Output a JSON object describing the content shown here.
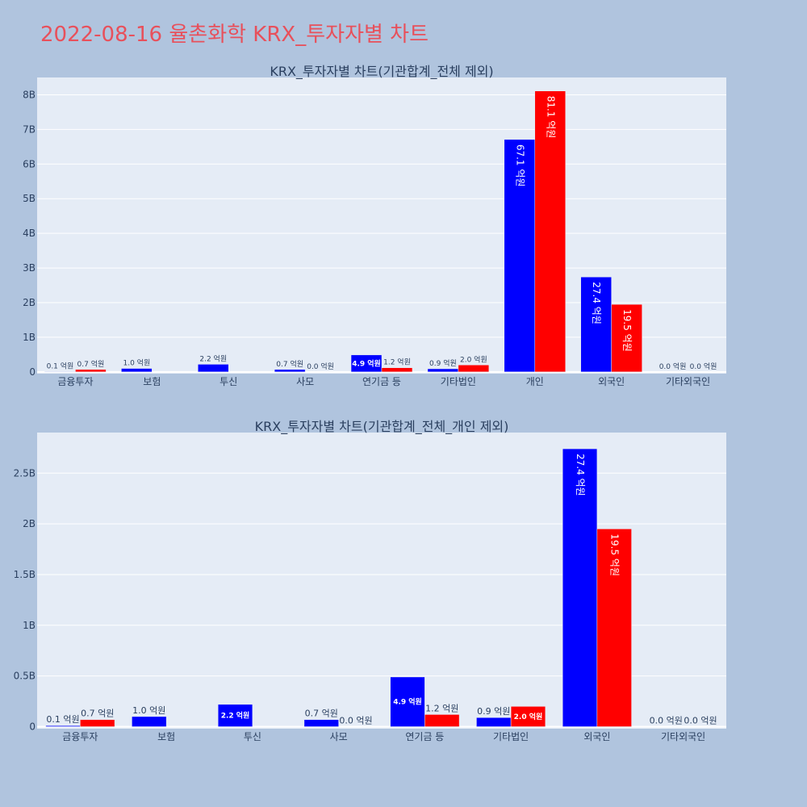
{
  "page": {
    "title": "2022-08-16 율촌화학 KRX_투자자별 차트"
  },
  "colors": {
    "buy": "#0000ff",
    "sell": "#ff0000",
    "plot_bg": "#e5ecf6",
    "page_bg": "#b0c4de",
    "title": "#e8505b"
  },
  "chart_data": [
    {
      "type": "bar",
      "title": "KRX_투자자별 차트(기관합계_전체 제외)",
      "categories": [
        "금융투자",
        "보험",
        "투신",
        "사모",
        "연기금 등",
        "기타법인",
        "개인",
        "외국인",
        "기타외국인"
      ],
      "series": [
        {
          "color": "blue",
          "values": [
            0.01,
            0.1,
            0.22,
            0.07,
            0.49,
            0.09,
            6.71,
            2.74,
            0.0
          ],
          "labels": [
            "0.1 억원",
            "1.0 억원",
            "2.2 억원",
            "0.7 억원",
            "4.9 억원",
            "0.9 억원",
            "67.1 억원",
            "27.4 억원",
            "0.0 억원"
          ]
        },
        {
          "color": "red",
          "values": [
            0.07,
            0.0,
            0.0,
            0.0,
            0.12,
            0.2,
            8.11,
            1.95,
            0.0
          ],
          "labels": [
            "0.7 억원",
            "",
            "",
            "0.0 억원",
            "1.2 억원",
            "2.0 억원",
            "81.1 억원",
            "19.5 억원",
            "0.0 억원"
          ]
        }
      ],
      "yticks": [
        "0",
        "1B",
        "2B",
        "3B",
        "4B",
        "5B",
        "6B",
        "7B",
        "8B"
      ],
      "ytick_values": [
        0,
        1,
        2,
        3,
        4,
        5,
        6,
        7,
        8
      ],
      "ylim": [
        -0.05,
        8.5
      ],
      "y_unit": "B (billion KRW)",
      "grid": true
    },
    {
      "type": "bar",
      "title": "KRX_투자자별 차트(기관합계_전체_개인 제외)",
      "categories": [
        "금융투자",
        "보험",
        "투신",
        "사모",
        "연기금 등",
        "기타법인",
        "외국인",
        "기타외국인"
      ],
      "series": [
        {
          "color": "blue",
          "values": [
            0.01,
            0.1,
            0.22,
            0.07,
            0.49,
            0.09,
            2.74,
            0.0
          ],
          "labels": [
            "0.1 억원",
            "1.0 억원",
            "2.2 억원",
            "0.7 억원",
            "4.9 억원",
            "0.9 억원",
            "27.4 억원",
            "0.0 억원"
          ]
        },
        {
          "color": "red",
          "values": [
            0.07,
            0.0,
            0.0,
            0.0,
            0.12,
            0.2,
            1.95,
            0.0
          ],
          "labels": [
            "0.7 억원",
            "",
            "",
            "0.0 억원",
            "1.2 억원",
            "2.0 억원",
            "19.5 억원",
            "0.0 억원"
          ]
        }
      ],
      "yticks": [
        "0",
        "0.5B",
        "1B",
        "1.5B",
        "2B",
        "2.5B"
      ],
      "ytick_values": [
        0,
        0.5,
        1,
        1.5,
        2,
        2.5
      ],
      "ylim": [
        -0.02,
        2.9
      ],
      "y_unit": "B (billion KRW)",
      "grid": true
    }
  ]
}
